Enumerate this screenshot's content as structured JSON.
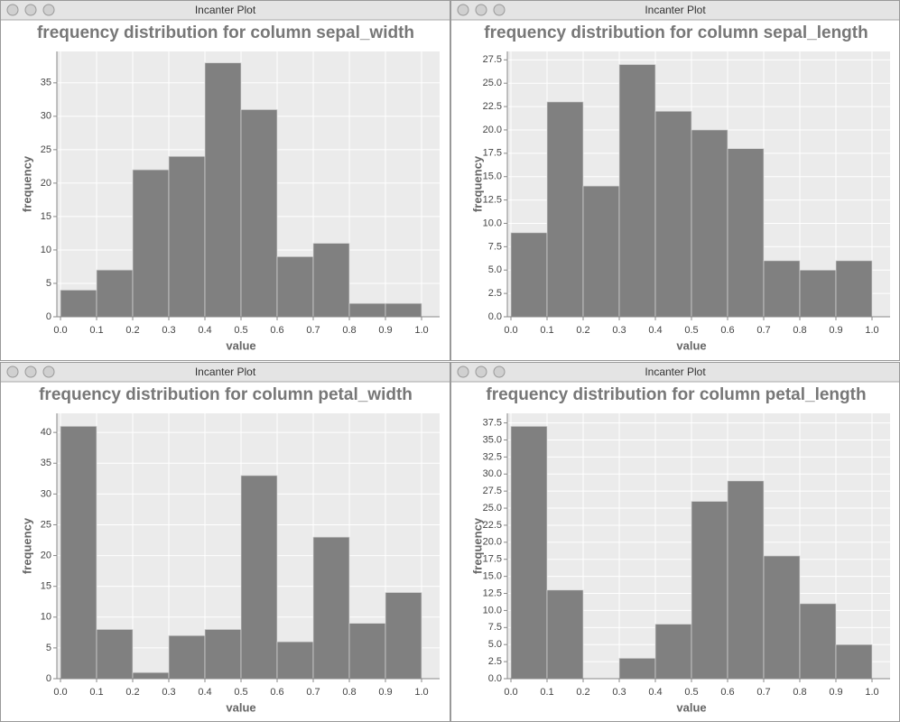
{
  "windows": [
    {
      "title": "Incanter Plot"
    },
    {
      "title": "Incanter Plot"
    },
    {
      "title": "Incanter Plot"
    },
    {
      "title": "Incanter Plot"
    }
  ],
  "chart_data": [
    {
      "type": "histogram",
      "title": "frequency distribution for column sepal_width",
      "x_label": "value",
      "y_label": "frequency",
      "color": "#808080",
      "bins": [
        {
          "value": 0,
          "label": "0.0"
        },
        0.1,
        0.2,
        0.3,
        0.4,
        0.5,
        0.6,
        0.7,
        0.8,
        0.9,
        {
          "value": 1,
          "label": "1.0"
        }
      ],
      "values": [
        4,
        7,
        22,
        24,
        38,
        31,
        9,
        11,
        2,
        2
      ],
      "xlim": [
        -0.01,
        1.05
      ],
      "xticks": [
        {
          "value": 0,
          "label": "0.0"
        },
        0.1,
        0.2,
        0.3,
        0.4,
        0.5,
        0.6,
        0.7,
        0.8,
        0.9,
        {
          "value": 1,
          "label": "1.0"
        }
      ],
      "ylim": [
        0,
        39.7
      ],
      "yticks": [
        0,
        5,
        10,
        15,
        20,
        25,
        30,
        35
      ],
      "grid": true
    },
    {
      "type": "histogram",
      "title": "frequency distribution for column sepal_length",
      "x_label": "value",
      "y_label": "frequency",
      "color": "#808080",
      "bins": [
        {
          "value": 0,
          "label": "0.0"
        },
        0.1,
        0.2,
        0.3,
        0.4,
        0.5,
        0.6,
        0.7,
        0.8,
        0.9,
        {
          "value": 1,
          "label": "1.0"
        }
      ],
      "values": [
        9,
        23,
        14,
        27,
        22,
        20,
        18,
        6,
        5,
        6
      ],
      "xlim": [
        -0.01,
        1.05
      ],
      "xticks": [
        {
          "value": 0,
          "label": "0.0"
        },
        0.1,
        0.2,
        0.3,
        0.4,
        0.5,
        0.6,
        0.7,
        0.8,
        0.9,
        {
          "value": 1,
          "label": "1.0"
        }
      ],
      "ylim": [
        0,
        28.4
      ],
      "yticks": [
        {
          "value": 0,
          "label": "0.0"
        },
        2.5,
        {
          "value": 5,
          "label": "5.0"
        },
        7.5,
        {
          "value": 10,
          "label": "10.0"
        },
        12.5,
        {
          "value": 15,
          "label": "15.0"
        },
        17.5,
        {
          "value": 20,
          "label": "20.0"
        },
        22.5,
        {
          "value": 25,
          "label": "25.0"
        },
        27.5
      ],
      "grid": true
    },
    {
      "type": "histogram",
      "title": "frequency distribution for column petal_width",
      "x_label": "value",
      "y_label": "frequency",
      "color": "#808080",
      "bins": [
        {
          "value": 0,
          "label": "0.0"
        },
        0.1,
        0.2,
        0.3,
        0.4,
        0.5,
        0.6,
        0.7,
        0.8,
        0.9,
        {
          "value": 1,
          "label": "1.0"
        }
      ],
      "values": [
        41,
        8,
        1,
        7,
        8,
        33,
        6,
        23,
        9,
        14
      ],
      "xlim": [
        -0.01,
        1.05
      ],
      "xticks": [
        {
          "value": 0,
          "label": "0.0"
        },
        0.1,
        0.2,
        0.3,
        0.4,
        0.5,
        0.6,
        0.7,
        0.8,
        0.9,
        {
          "value": 1,
          "label": "1.0"
        }
      ],
      "ylim": [
        0,
        43.1
      ],
      "yticks": [
        0,
        5,
        10,
        15,
        20,
        25,
        30,
        35,
        40
      ],
      "grid": true
    },
    {
      "type": "histogram",
      "title": "frequency distribution for column petal_length",
      "x_label": "value",
      "y_label": "frequency",
      "color": "#808080",
      "bins": [
        {
          "value": 0,
          "label": "0.0"
        },
        0.1,
        0.2,
        0.3,
        0.4,
        0.5,
        0.6,
        0.7,
        0.8,
        0.9,
        {
          "value": 1,
          "label": "1.0"
        }
      ],
      "values": [
        37,
        13,
        0,
        3,
        8,
        26,
        29,
        18,
        11,
        5
      ],
      "xlim": [
        -0.01,
        1.05
      ],
      "xticks": [
        {
          "value": 0,
          "label": "0.0"
        },
        0.1,
        0.2,
        0.3,
        0.4,
        0.5,
        0.6,
        0.7,
        0.8,
        0.9,
        {
          "value": 1,
          "label": "1.0"
        }
      ],
      "ylim": [
        0,
        38.9
      ],
      "yticks": [
        {
          "value": 0,
          "label": "0.0"
        },
        2.5,
        {
          "value": 5,
          "label": "5.0"
        },
        7.5,
        {
          "value": 10,
          "label": "10.0"
        },
        12.5,
        {
          "value": 15,
          "label": "15.0"
        },
        17.5,
        {
          "value": 20,
          "label": "20.0"
        },
        22.5,
        {
          "value": 25,
          "label": "25.0"
        },
        27.5,
        {
          "value": 30,
          "label": "30.0"
        },
        32.5,
        {
          "value": 35,
          "label": "35.0"
        },
        37.5
      ],
      "grid": true
    }
  ]
}
